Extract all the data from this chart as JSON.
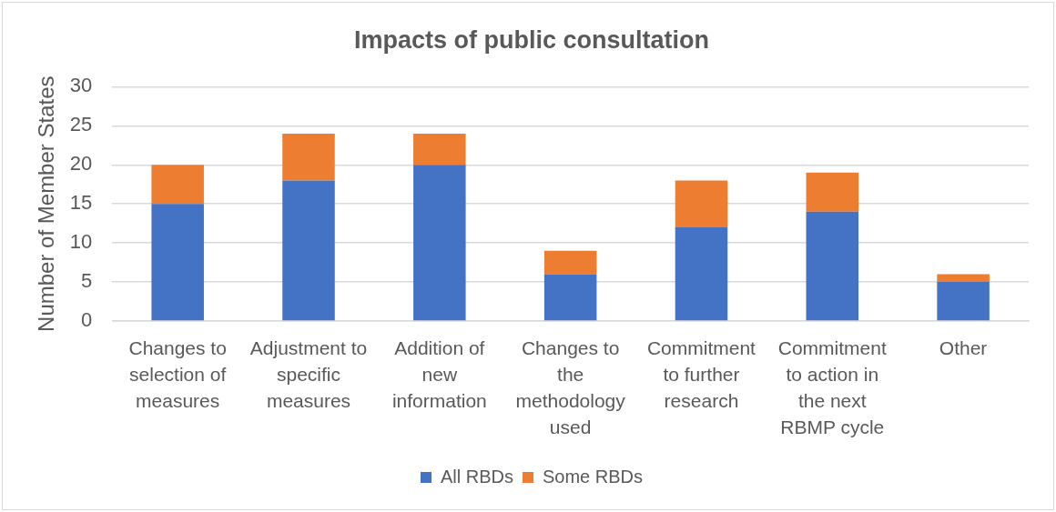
{
  "chart_data": {
    "type": "bar",
    "title": "Impacts of public consultation",
    "ylabel": "Number of Member States",
    "categories": [
      "Changes to selection of measures",
      "Adjustment to specific measures",
      "Addition of new information",
      "Changes to the methodology used",
      "Commitment to further research",
      "Commitment to action in the next RBMP cycle",
      "Other"
    ],
    "series": [
      {
        "name": "All RBDs",
        "color": "#4472c4",
        "values": [
          15,
          18,
          20,
          6,
          12,
          14,
          5
        ]
      },
      {
        "name": "Some RBDs",
        "color": "#ed7d31",
        "values": [
          5,
          6,
          4,
          3,
          6,
          5,
          1
        ]
      }
    ],
    "stacked": true,
    "ylim": [
      0,
      30
    ],
    "yticks": [
      0,
      5,
      10,
      15,
      20,
      25,
      30
    ],
    "grid": "y",
    "legend": "bottom"
  }
}
